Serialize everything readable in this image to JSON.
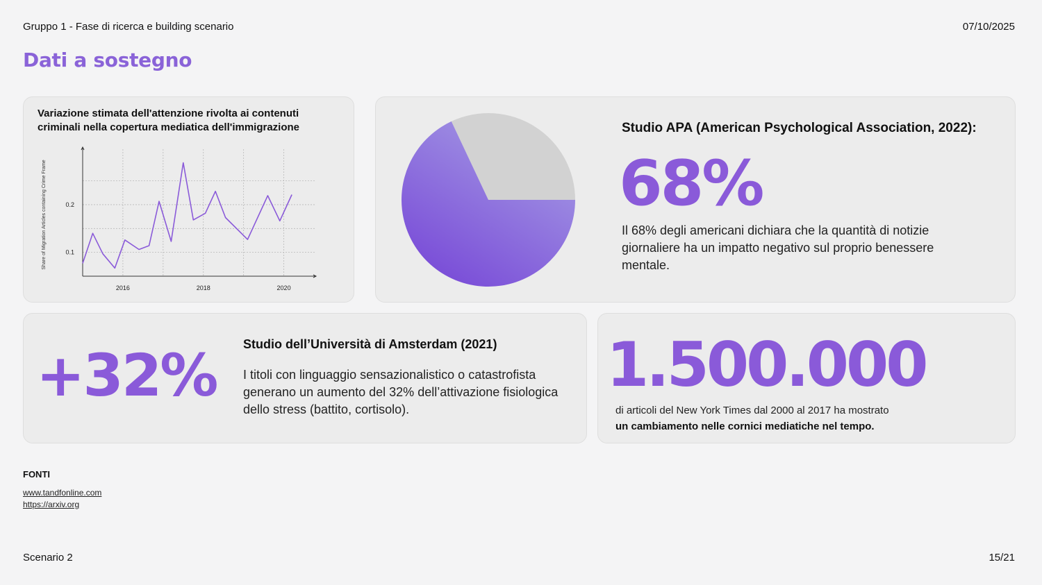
{
  "header": {
    "group_title": "Gruppo 1 - Fase di ricerca e building scenario",
    "date": "07/10/2025",
    "page_title": "Dati a sostegno"
  },
  "chart_card": {
    "title": "Variazione stimata dell'attenzione rivolta ai contenuti criminali nella copertura mediatica dell'immigrazione"
  },
  "chart_data": {
    "type": "line",
    "title": "Variazione stimata dell'attenzione rivolta ai contenuti criminali nella copertura mediatica dell'immigrazione",
    "xlabel": "",
    "ylabel": "Share of Migration Articles containing Crime Frame",
    "x_ticks": [
      "2016",
      "2018",
      "2020"
    ],
    "y_ticks": [
      "0.1",
      "0.2"
    ],
    "xlim": [
      2015.0,
      2020.75
    ],
    "ylim": [
      0.05,
      0.28
    ],
    "grid": true,
    "series": [
      {
        "x": [
          2015.0,
          2015.25,
          2015.5,
          2015.8,
          2016.05,
          2016.4,
          2016.65,
          2016.9,
          2017.2,
          2017.5,
          2017.75,
          2018.05,
          2018.3,
          2018.55,
          2019.1,
          2019.6,
          2019.9,
          2020.2
        ],
        "values": [
          0.077,
          0.14,
          0.097,
          0.067,
          0.126,
          0.106,
          0.114,
          0.207,
          0.123,
          0.288,
          0.168,
          0.182,
          0.228,
          0.173,
          0.127,
          0.219,
          0.166,
          0.221
        ],
        "color": "#8a5ad9"
      }
    ]
  },
  "apa": {
    "heading": "Studio APA (American Psychological Association, 2022):",
    "big_value": "68%",
    "body": "Il 68% degli americani dichiara che la quantità di notizie giornaliere ha un impatto negativo sul proprio benessere mentale.",
    "pie_share": 0.68,
    "pie_colors": {
      "highlight_start": "#aaa4e6",
      "highlight_end": "#7b4fd8",
      "rest": "#d2d2d2"
    }
  },
  "amsterdam": {
    "big_value": "+32%",
    "heading": "Studio dell’Università di Amsterdam (2021)",
    "body": "I titoli con linguaggio sensazionalistico o catastrofista generano un aumento del 32% dell’attivazione fisiologica dello stress (battito, cortisolo)."
  },
  "nyt": {
    "big_value": "1.500.000",
    "body_line1": "di articoli del New York Times dal 2000 al 2017 ha mostrato",
    "body_line2": "un cambiamento nelle cornici mediatiche nel tempo."
  },
  "sources": {
    "label": "FONTI",
    "links": [
      "www.tandfonline.com",
      "https://arxiv.org"
    ]
  },
  "footer": {
    "scenario": "Scenario 2",
    "page": "15/21"
  },
  "colors": {
    "accent": "#8a5ad9",
    "title": "#8a63d8",
    "background": "#f4f4f5",
    "card": "#ececec"
  }
}
